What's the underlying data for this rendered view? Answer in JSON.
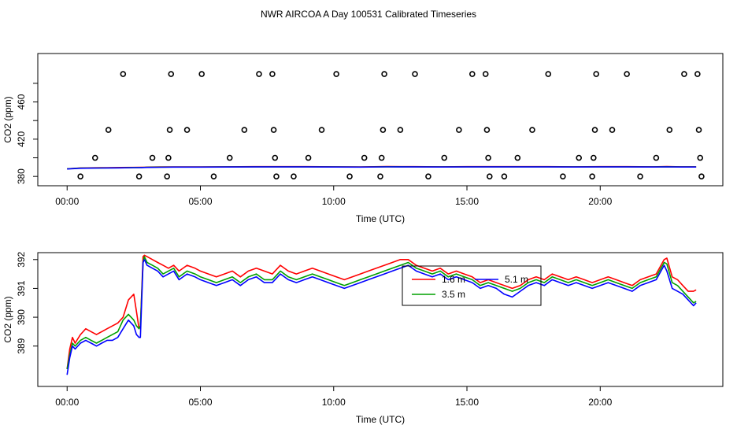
{
  "title": "NWR AIRCOA A  Day 100531  Calibrated Timeseries",
  "chart_data": [
    {
      "type": "scatter",
      "id": "top",
      "xlabel": "Time (UTC)",
      "ylabel": "CO2 (ppm)",
      "xlim": [
        -1.1,
        24.6
      ],
      "ylim": [
        370,
        512
      ],
      "x_ticks": [
        {
          "value": 0,
          "label": "00:00"
        },
        {
          "value": 5,
          "label": "05:00"
        },
        {
          "value": 10,
          "label": "10:00"
        },
        {
          "value": 15,
          "label": "15:00"
        },
        {
          "value": 20,
          "label": "20:00"
        }
      ],
      "y_ticks": [
        {
          "value": 380,
          "label": "380"
        },
        {
          "value": 420,
          "label": "420"
        },
        {
          "value": 460,
          "label": "460"
        }
      ],
      "extra_y_ticks": [
        400,
        440,
        480
      ],
      "points_x": [
        0.5,
        1.05,
        1.55,
        2.1,
        2.7,
        3.2,
        3.75,
        3.8,
        3.85,
        3.9,
        4.5,
        5.05,
        5.5,
        6.1,
        6.65,
        7.2,
        7.7,
        7.75,
        7.8,
        7.85,
        8.5,
        9.05,
        9.55,
        10.1,
        10.6,
        11.15,
        11.75,
        11.8,
        11.85,
        11.9,
        12.5,
        13.05,
        13.55,
        14.15,
        14.7,
        15.2,
        15.7,
        15.75,
        15.8,
        15.85,
        16.4,
        16.9,
        17.45,
        18.05,
        18.6,
        19.2,
        19.7,
        19.75,
        19.8,
        19.85,
        20.45,
        21.0,
        21.5,
        22.1,
        22.6,
        23.15,
        23.65,
        23.7,
        23.75,
        23.8
      ],
      "points_y": [
        380,
        400,
        430,
        490,
        380,
        400,
        380,
        400,
        430,
        490,
        430,
        490,
        380,
        400,
        430,
        490,
        490,
        430,
        400,
        380,
        380,
        400,
        430,
        490,
        380,
        400,
        380,
        400,
        430,
        490,
        430,
        490,
        380,
        400,
        430,
        490,
        490,
        430,
        400,
        380,
        380,
        400,
        430,
        490,
        380,
        400,
        380,
        400,
        430,
        490,
        430,
        490,
        380,
        400,
        430,
        490,
        490,
        430,
        400,
        380
      ],
      "series": [
        {
          "name": "1.6 m",
          "color": "#ff0000",
          "x": [
            0,
            0.5,
            1,
            1.5,
            2,
            2.5,
            2.8,
            2.9,
            3,
            3.5,
            4,
            5,
            6,
            7,
            8,
            9,
            10,
            11,
            12,
            13,
            14,
            15,
            16,
            17,
            18,
            19,
            20,
            21,
            22,
            22.5,
            23,
            23.5,
            23.6
          ],
          "values": [
            388.2,
            389.1,
            389.3,
            389.4,
            389.6,
            389.7,
            389.8,
            389.9,
            390.0,
            390.2,
            390.3,
            390.3,
            390.4,
            390.5,
            390.5,
            390.5,
            390.4,
            390.3,
            390.6,
            390.5,
            390.4,
            390.5,
            390.5,
            390.5,
            390.5,
            390.4,
            390.5,
            390.5,
            390.4,
            390.6,
            390.4,
            390.4,
            390.4
          ]
        },
        {
          "name": "3.5 m",
          "color": "#00a000",
          "x": [
            0,
            0.5,
            1,
            1.5,
            2,
            2.5,
            2.8,
            2.9,
            3,
            3.5,
            4,
            5,
            6,
            7,
            8,
            9,
            10,
            11,
            12,
            13,
            14,
            15,
            16,
            17,
            18,
            19,
            20,
            21,
            22,
            22.5,
            23,
            23.5,
            23.6
          ],
          "values": [
            388.2,
            388.9,
            389.0,
            389.2,
            389.3,
            389.5,
            389.6,
            389.7,
            389.8,
            390.0,
            390.1,
            390.1,
            390.2,
            390.3,
            390.3,
            390.3,
            390.2,
            390.1,
            390.4,
            390.3,
            390.2,
            390.3,
            390.3,
            390.3,
            390.3,
            390.2,
            390.3,
            390.3,
            390.2,
            390.4,
            390.2,
            390.2,
            390.2
          ]
        },
        {
          "name": "5.1 m",
          "color": "#0000ff",
          "x": [
            0,
            0.5,
            1,
            1.5,
            2,
            2.5,
            2.8,
            2.9,
            3,
            3.5,
            4,
            5,
            6,
            7,
            8,
            9,
            10,
            11,
            12,
            13,
            14,
            15,
            16,
            17,
            18,
            19,
            20,
            21,
            22,
            22.5,
            23,
            23.5,
            23.6
          ],
          "values": [
            388.0,
            388.8,
            388.9,
            389.1,
            389.2,
            389.4,
            389.5,
            389.6,
            389.7,
            389.9,
            390.0,
            390.0,
            390.1,
            390.2,
            390.2,
            390.2,
            390.1,
            390.0,
            390.3,
            390.2,
            390.1,
            390.2,
            390.2,
            390.2,
            390.2,
            390.1,
            390.2,
            390.2,
            390.1,
            390.3,
            390.1,
            390.1,
            390.1
          ]
        }
      ]
    },
    {
      "type": "line",
      "id": "bottom",
      "xlabel": "Time (UTC)",
      "ylabel": "CO2 (ppm)",
      "xlim": [
        -1.1,
        24.6
      ],
      "ylim": [
        387.6,
        392.24
      ],
      "x_ticks": [
        {
          "value": 0,
          "label": "00:00"
        },
        {
          "value": 5,
          "label": "05:00"
        },
        {
          "value": 10,
          "label": "10:00"
        },
        {
          "value": 15,
          "label": "15:00"
        },
        {
          "value": 20,
          "label": "20:00"
        }
      ],
      "y_ticks": [
        {
          "value": 389,
          "label": "389"
        },
        {
          "value": 390,
          "label": "390"
        },
        {
          "value": 391,
          "label": "391"
        },
        {
          "value": 392,
          "label": "392"
        }
      ],
      "extra_y_ticks": [],
      "legend": {
        "position": "center-right",
        "entries": [
          {
            "label": "1.6 m",
            "color": "#ff0000"
          },
          {
            "label": "3.5 m",
            "color": "#00a000"
          },
          {
            "label": "5.1 m",
            "color": "#0000ff"
          }
        ]
      },
      "series": [
        {
          "name": "1.6 m",
          "color": "#ff0000",
          "x": [
            0,
            0.1,
            0.2,
            0.3,
            0.5,
            0.7,
            0.9,
            1.1,
            1.3,
            1.5,
            1.7,
            1.9,
            2.1,
            2.3,
            2.5,
            2.6,
            2.7,
            2.75,
            2.85,
            2.9,
            3.0,
            3.2,
            3.4,
            3.6,
            3.8,
            4.0,
            4.2,
            4.5,
            4.8,
            5.0,
            5.3,
            5.6,
            5.9,
            6.2,
            6.5,
            6.8,
            7.1,
            7.4,
            7.7,
            8.0,
            8.3,
            8.6,
            8.9,
            9.2,
            9.5,
            9.8,
            10.1,
            10.4,
            10.7,
            11.0,
            11.3,
            11.6,
            11.9,
            12.2,
            12.5,
            12.8,
            13.1,
            13.4,
            13.7,
            14.0,
            14.3,
            14.6,
            14.9,
            15.2,
            15.5,
            15.8,
            16.1,
            16.4,
            16.7,
            17.0,
            17.3,
            17.6,
            17.9,
            18.2,
            18.5,
            18.8,
            19.1,
            19.4,
            19.7,
            20.0,
            20.3,
            20.6,
            20.9,
            21.2,
            21.5,
            21.8,
            22.1,
            22.4,
            22.5,
            22.7,
            22.9,
            23.1,
            23.3,
            23.5,
            23.6
          ],
          "values": [
            388.2,
            388.9,
            389.3,
            389.1,
            389.4,
            389.6,
            389.5,
            389.4,
            389.5,
            389.6,
            389.7,
            389.8,
            390.0,
            390.6,
            390.8,
            390.2,
            389.6,
            389.7,
            392.1,
            392.15,
            392.1,
            392.0,
            391.9,
            391.8,
            391.7,
            391.8,
            391.6,
            391.8,
            391.7,
            391.6,
            391.5,
            391.4,
            391.5,
            391.6,
            391.4,
            391.6,
            391.7,
            391.6,
            391.5,
            391.8,
            391.6,
            391.5,
            391.6,
            391.7,
            391.6,
            391.5,
            391.4,
            391.3,
            391.4,
            391.5,
            391.6,
            391.7,
            391.8,
            391.9,
            392.0,
            392.0,
            391.8,
            391.7,
            391.6,
            391.7,
            391.5,
            391.6,
            391.5,
            391.4,
            391.2,
            391.3,
            391.2,
            391.1,
            391.0,
            391.1,
            391.3,
            391.4,
            391.3,
            391.5,
            391.4,
            391.3,
            391.4,
            391.3,
            391.2,
            391.3,
            391.4,
            391.3,
            391.2,
            391.1,
            391.3,
            391.4,
            391.5,
            392.0,
            392.05,
            391.4,
            391.3,
            391.1,
            390.9,
            390.9,
            390.95
          ]
        },
        {
          "name": "3.5 m",
          "color": "#00a000",
          "x": [
            0,
            0.1,
            0.2,
            0.3,
            0.5,
            0.7,
            0.9,
            1.1,
            1.3,
            1.5,
            1.7,
            1.9,
            2.1,
            2.3,
            2.5,
            2.6,
            2.7,
            2.75,
            2.85,
            2.9,
            3.0,
            3.2,
            3.4,
            3.6,
            3.8,
            4.0,
            4.2,
            4.5,
            4.8,
            5.0,
            5.3,
            5.6,
            5.9,
            6.2,
            6.5,
            6.8,
            7.1,
            7.4,
            7.7,
            8.0,
            8.3,
            8.6,
            8.9,
            9.2,
            9.5,
            9.8,
            10.1,
            10.4,
            10.7,
            11.0,
            11.3,
            11.6,
            11.9,
            12.2,
            12.5,
            12.8,
            13.1,
            13.4,
            13.7,
            14.0,
            14.3,
            14.6,
            14.9,
            15.2,
            15.5,
            15.8,
            16.1,
            16.4,
            16.7,
            17.0,
            17.3,
            17.6,
            17.9,
            18.2,
            18.5,
            18.8,
            19.1,
            19.4,
            19.7,
            20.0,
            20.3,
            20.6,
            20.9,
            21.2,
            21.5,
            21.8,
            22.1,
            22.4,
            22.5,
            22.7,
            22.9,
            23.1,
            23.3,
            23.5,
            23.6
          ],
          "values": [
            388.2,
            388.7,
            389.1,
            389.0,
            389.2,
            389.3,
            389.2,
            389.1,
            389.2,
            389.3,
            389.4,
            389.5,
            389.9,
            390.1,
            389.9,
            389.7,
            389.6,
            389.7,
            391.9,
            392.1,
            391.9,
            391.8,
            391.7,
            391.5,
            391.6,
            391.7,
            391.4,
            391.6,
            391.5,
            391.4,
            391.3,
            391.2,
            391.3,
            391.4,
            391.2,
            391.4,
            391.5,
            391.3,
            391.3,
            391.6,
            391.4,
            391.3,
            391.4,
            391.5,
            391.4,
            391.3,
            391.2,
            391.1,
            391.2,
            391.3,
            391.4,
            391.5,
            391.6,
            391.7,
            391.8,
            391.9,
            391.7,
            391.6,
            391.5,
            391.6,
            391.4,
            391.5,
            391.4,
            391.3,
            391.1,
            391.2,
            391.1,
            391.0,
            390.9,
            391.0,
            391.2,
            391.3,
            391.2,
            391.4,
            391.3,
            391.2,
            391.3,
            391.2,
            391.1,
            391.2,
            391.3,
            391.2,
            391.1,
            391.0,
            391.2,
            391.3,
            391.4,
            391.9,
            391.85,
            391.2,
            391.1,
            390.9,
            390.7,
            390.5,
            390.55
          ]
        },
        {
          "name": "5.1 m",
          "color": "#0000ff",
          "x": [
            0,
            0.1,
            0.2,
            0.3,
            0.5,
            0.7,
            0.9,
            1.1,
            1.3,
            1.5,
            1.7,
            1.9,
            2.1,
            2.3,
            2.5,
            2.6,
            2.7,
            2.75,
            2.85,
            2.9,
            3.0,
            3.2,
            3.4,
            3.6,
            3.8,
            4.0,
            4.2,
            4.5,
            4.8,
            5.0,
            5.3,
            5.6,
            5.9,
            6.2,
            6.5,
            6.8,
            7.1,
            7.4,
            7.7,
            8.0,
            8.3,
            8.6,
            8.9,
            9.2,
            9.5,
            9.8,
            10.1,
            10.4,
            10.7,
            11.0,
            11.3,
            11.6,
            11.9,
            12.2,
            12.5,
            12.8,
            13.1,
            13.4,
            13.7,
            14.0,
            14.3,
            14.6,
            14.9,
            15.2,
            15.5,
            15.8,
            16.1,
            16.4,
            16.7,
            17.0,
            17.3,
            17.6,
            17.9,
            18.2,
            18.5,
            18.8,
            19.1,
            19.4,
            19.7,
            20.0,
            20.3,
            20.6,
            20.9,
            21.2,
            21.5,
            21.8,
            22.1,
            22.4,
            22.5,
            22.7,
            22.9,
            23.1,
            23.3,
            23.5,
            23.6
          ],
          "values": [
            388.0,
            388.6,
            389.0,
            388.9,
            389.1,
            389.2,
            389.1,
            389.0,
            389.1,
            389.2,
            389.2,
            389.3,
            389.6,
            389.9,
            389.7,
            389.4,
            389.3,
            389.3,
            391.9,
            392.0,
            391.8,
            391.7,
            391.6,
            391.4,
            391.5,
            391.6,
            391.3,
            391.5,
            391.4,
            391.3,
            391.2,
            391.1,
            391.2,
            391.3,
            391.1,
            391.3,
            391.4,
            391.2,
            391.2,
            391.5,
            391.3,
            391.2,
            391.3,
            391.4,
            391.3,
            391.2,
            391.1,
            391.0,
            391.1,
            391.2,
            391.3,
            391.4,
            391.5,
            391.6,
            391.7,
            391.8,
            391.6,
            391.5,
            391.4,
            391.5,
            391.3,
            391.4,
            391.3,
            391.2,
            391.0,
            391.1,
            391.0,
            390.8,
            390.7,
            390.9,
            391.1,
            391.2,
            391.1,
            391.3,
            391.2,
            391.1,
            391.2,
            391.1,
            391.0,
            391.1,
            391.2,
            391.1,
            391.0,
            390.9,
            391.1,
            391.2,
            391.3,
            391.8,
            391.6,
            391.0,
            390.9,
            390.8,
            390.6,
            390.4,
            390.5
          ]
        }
      ]
    }
  ]
}
